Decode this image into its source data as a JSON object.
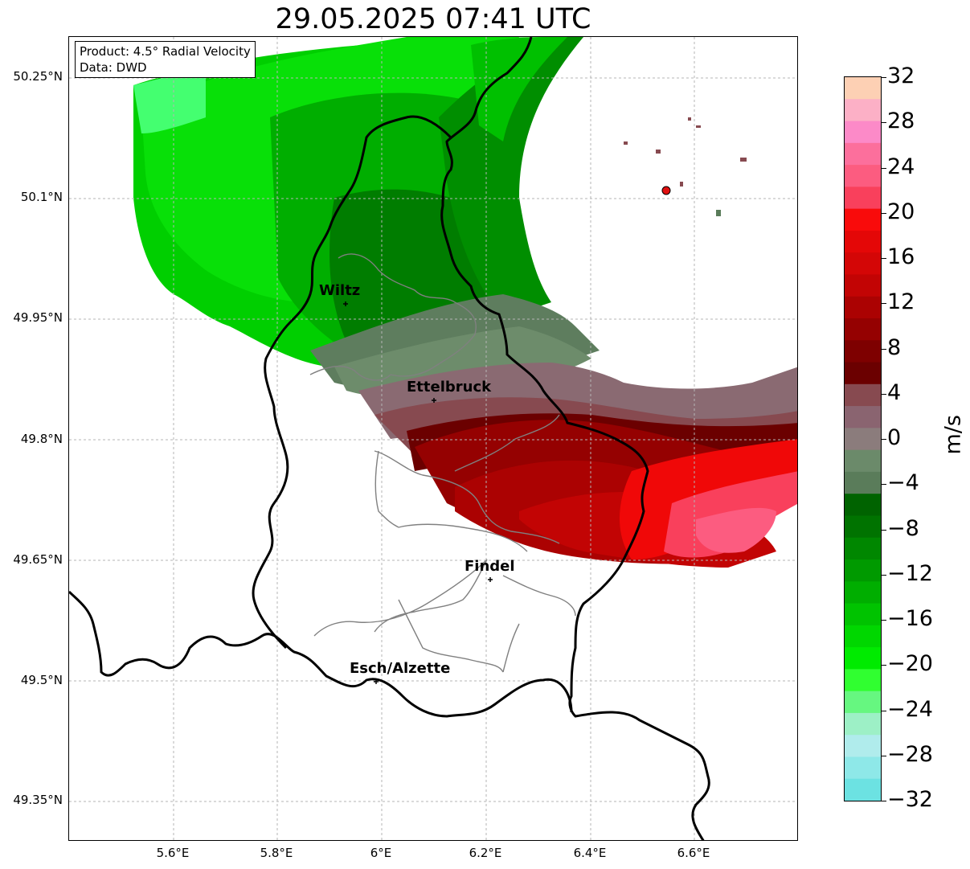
{
  "title": "29.05.2025 07:41 UTC",
  "infobox": {
    "line1": "Product: 4.5° Radial Velocity",
    "line2": "Data: DWD"
  },
  "axes": {
    "lat_labels": [
      "50.25°N",
      "50.1°N",
      "49.95°N",
      "49.8°N",
      "49.65°N",
      "49.5°N",
      "49.35°N"
    ],
    "lon_labels": [
      "5.6°E",
      "5.8°E",
      "6°E",
      "6.2°E",
      "6.4°E",
      "6.6°E"
    ]
  },
  "cities": [
    {
      "name": "Wiltz"
    },
    {
      "name": "Ettelbruck"
    },
    {
      "name": "Findel"
    },
    {
      "name": "Esch/Alzette"
    }
  ],
  "colorbar": {
    "unit": "m/s",
    "tick_labels": [
      "32",
      "28",
      "24",
      "20",
      "16",
      "12",
      "8",
      "4",
      "0",
      "−4",
      "−8",
      "−12",
      "−16",
      "−20",
      "−24",
      "−28",
      "−32"
    ],
    "colors": [
      "#fdd0b4",
      "#fcb0c6",
      "#fc8ac8",
      "#fc6f9c",
      "#fc5c80",
      "#f9405c",
      "#f90b0b",
      "#e40707",
      "#d40606",
      "#c20404",
      "#ab0202",
      "#950101",
      "#7e0000",
      "#6b0000",
      "#874a50",
      "#8a6470",
      "#8b7c7c",
      "#6b8a6a",
      "#5a7c5a",
      "#006300",
      "#007300",
      "#008700",
      "#009a00",
      "#00ae00",
      "#00c300",
      "#00d700",
      "#00eb00",
      "#30ff30",
      "#66f780",
      "#9df0c6",
      "#b0ecec",
      "#8ee8e8",
      "#6ce2e2"
    ]
  },
  "radar_marker_color": "#e01010",
  "border_color": "#000000",
  "canton_color": "#808080"
}
